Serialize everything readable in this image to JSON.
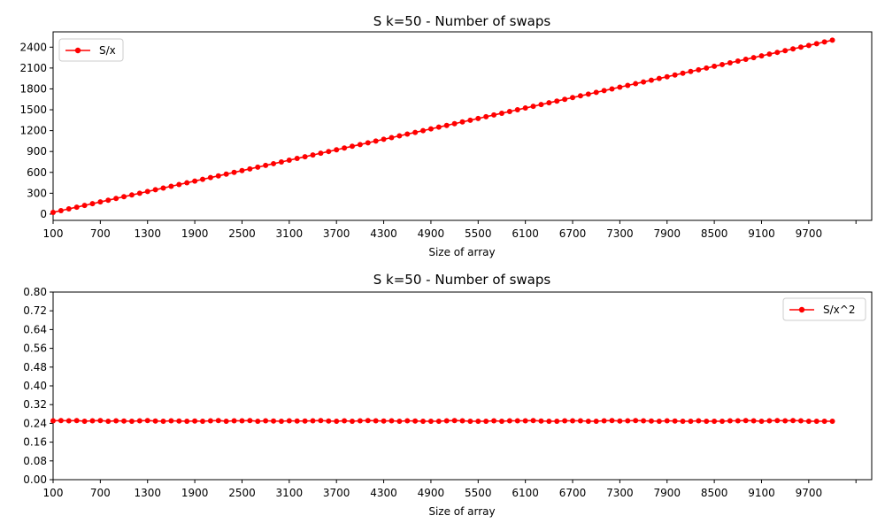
{
  "chart_data": [
    {
      "type": "line",
      "title": "S k=50 - Number of swaps",
      "xlabel": "Size of array",
      "ylabel": "",
      "x": [
        100,
        200,
        300,
        400,
        500,
        600,
        700,
        800,
        900,
        1000,
        1100,
        1200,
        1300,
        1400,
        1500,
        1600,
        1700,
        1800,
        1900,
        2000,
        2100,
        2200,
        2300,
        2400,
        2500,
        2600,
        2700,
        2800,
        2900,
        3000,
        3100,
        3200,
        3300,
        3400,
        3500,
        3600,
        3700,
        3800,
        3900,
        4000,
        4100,
        4200,
        4300,
        4400,
        4500,
        4600,
        4700,
        4800,
        4900,
        5000,
        5100,
        5200,
        5300,
        5400,
        5500,
        5600,
        5700,
        5800,
        5900,
        6000,
        6100,
        6200,
        6300,
        6400,
        6500,
        6600,
        6700,
        6800,
        6900,
        7000,
        7100,
        7200,
        7300,
        7400,
        7500,
        7600,
        7700,
        7800,
        7900,
        8000,
        8100,
        8200,
        8300,
        8400,
        8500,
        8600,
        8700,
        8800,
        8900,
        9000,
        9100,
        9200,
        9300,
        9400,
        9500,
        9600,
        9700,
        9800,
        9900,
        10000
      ],
      "xticks": [
        "100",
        "700",
        "1300",
        "1900",
        "2500",
        "3100",
        "3700",
        "4300",
        "4900",
        "5500",
        "6100",
        "6700",
        "7300",
        "7900",
        "8500",
        "9100",
        "9700",
        ""
      ],
      "xlim": [
        100,
        10500
      ],
      "ylim": [
        -90,
        2620
      ],
      "yticks": [
        "0",
        "300",
        "600",
        "900",
        "1200",
        "1500",
        "1800",
        "2100",
        "2400"
      ],
      "yticks_values": [
        0,
        300,
        600,
        900,
        1200,
        1500,
        1800,
        2100,
        2400
      ],
      "series": [
        {
          "name": "S/x",
          "color": "#ff0000",
          "marker": "circle",
          "values": [
            25,
            50,
            75,
            100,
            125,
            150,
            175,
            200,
            225,
            250,
            275,
            300,
            325,
            350,
            375,
            400,
            425,
            450,
            475,
            500,
            525,
            550,
            575,
            600,
            625,
            650,
            675,
            700,
            725,
            750,
            775,
            800,
            825,
            850,
            875,
            900,
            925,
            950,
            975,
            1000,
            1025,
            1050,
            1075,
            1100,
            1125,
            1150,
            1175,
            1200,
            1225,
            1250,
            1275,
            1300,
            1325,
            1350,
            1375,
            1400,
            1425,
            1450,
            1475,
            1500,
            1525,
            1550,
            1575,
            1600,
            1625,
            1650,
            1675,
            1700,
            1725,
            1750,
            1775,
            1800,
            1825,
            1850,
            1875,
            1900,
            1925,
            1950,
            1975,
            2000,
            2025,
            2050,
            2075,
            2100,
            2125,
            2150,
            2175,
            2200,
            2225,
            2250,
            2275,
            2300,
            2325,
            2350,
            2375,
            2400,
            2425,
            2450,
            2475,
            2500
          ]
        }
      ],
      "legend": "upper-left",
      "grid": false
    },
    {
      "type": "line",
      "title": "S k=50 - Number of swaps",
      "xlabel": "Size of array",
      "ylabel": "",
      "x": [
        100,
        200,
        300,
        400,
        500,
        600,
        700,
        800,
        900,
        1000,
        1100,
        1200,
        1300,
        1400,
        1500,
        1600,
        1700,
        1800,
        1900,
        2000,
        2100,
        2200,
        2300,
        2400,
        2500,
        2600,
        2700,
        2800,
        2900,
        3000,
        3100,
        3200,
        3300,
        3400,
        3500,
        3600,
        3700,
        3800,
        3900,
        4000,
        4100,
        4200,
        4300,
        4400,
        4500,
        4600,
        4700,
        4800,
        4900,
        5000,
        5100,
        5200,
        5300,
        5400,
        5500,
        5600,
        5700,
        5800,
        5900,
        6000,
        6100,
        6200,
        6300,
        6400,
        6500,
        6600,
        6700,
        6800,
        6900,
        7000,
        7100,
        7200,
        7300,
        7400,
        7500,
        7600,
        7700,
        7800,
        7900,
        8000,
        8100,
        8200,
        8300,
        8400,
        8500,
        8600,
        8700,
        8800,
        8900,
        9000,
        9100,
        9200,
        9300,
        9400,
        9500,
        9600,
        9700,
        9800,
        9900,
        10000
      ],
      "xticks": [
        "100",
        "700",
        "1300",
        "1900",
        "2500",
        "3100",
        "3700",
        "4300",
        "4900",
        "5500",
        "6100",
        "6700",
        "7300",
        "7900",
        "8500",
        "9100",
        "9700",
        ""
      ],
      "xlim": [
        100,
        10500
      ],
      "ylim": [
        0,
        0.8
      ],
      "yticks": [
        "0.00",
        "0.08",
        "0.16",
        "0.24",
        "0.32",
        "0.40",
        "0.48",
        "0.56",
        "0.64",
        "0.72",
        "0.80"
      ],
      "yticks_values": [
        0,
        0.08,
        0.16,
        0.24,
        0.32,
        0.4,
        0.48,
        0.56,
        0.64,
        0.72,
        0.8
      ],
      "series": [
        {
          "name": "S/x^2",
          "color": "#ff0000",
          "marker": "circle",
          "values": [
            0.251,
            0.252,
            0.251,
            0.252,
            0.249,
            0.251,
            0.252,
            0.249,
            0.251,
            0.25,
            0.249,
            0.251,
            0.252,
            0.25,
            0.249,
            0.251,
            0.25,
            0.249,
            0.25,
            0.249,
            0.251,
            0.252,
            0.249,
            0.251,
            0.251,
            0.252,
            0.249,
            0.251,
            0.25,
            0.249,
            0.251,
            0.25,
            0.25,
            0.251,
            0.252,
            0.25,
            0.249,
            0.251,
            0.249,
            0.251,
            0.252,
            0.251,
            0.25,
            0.251,
            0.249,
            0.251,
            0.25,
            0.249,
            0.249,
            0.249,
            0.251,
            0.252,
            0.251,
            0.249,
            0.249,
            0.249,
            0.251,
            0.249,
            0.251,
            0.251,
            0.251,
            0.252,
            0.25,
            0.249,
            0.249,
            0.251,
            0.251,
            0.251,
            0.249,
            0.249,
            0.251,
            0.252,
            0.25,
            0.251,
            0.252,
            0.251,
            0.25,
            0.249,
            0.251,
            0.25,
            0.249,
            0.249,
            0.251,
            0.249,
            0.249,
            0.249,
            0.251,
            0.251,
            0.252,
            0.251,
            0.249,
            0.251,
            0.252,
            0.251,
            0.252,
            0.251,
            0.249,
            0.249,
            0.249,
            0.249
          ]
        }
      ],
      "legend": "upper-right",
      "grid": false
    }
  ]
}
